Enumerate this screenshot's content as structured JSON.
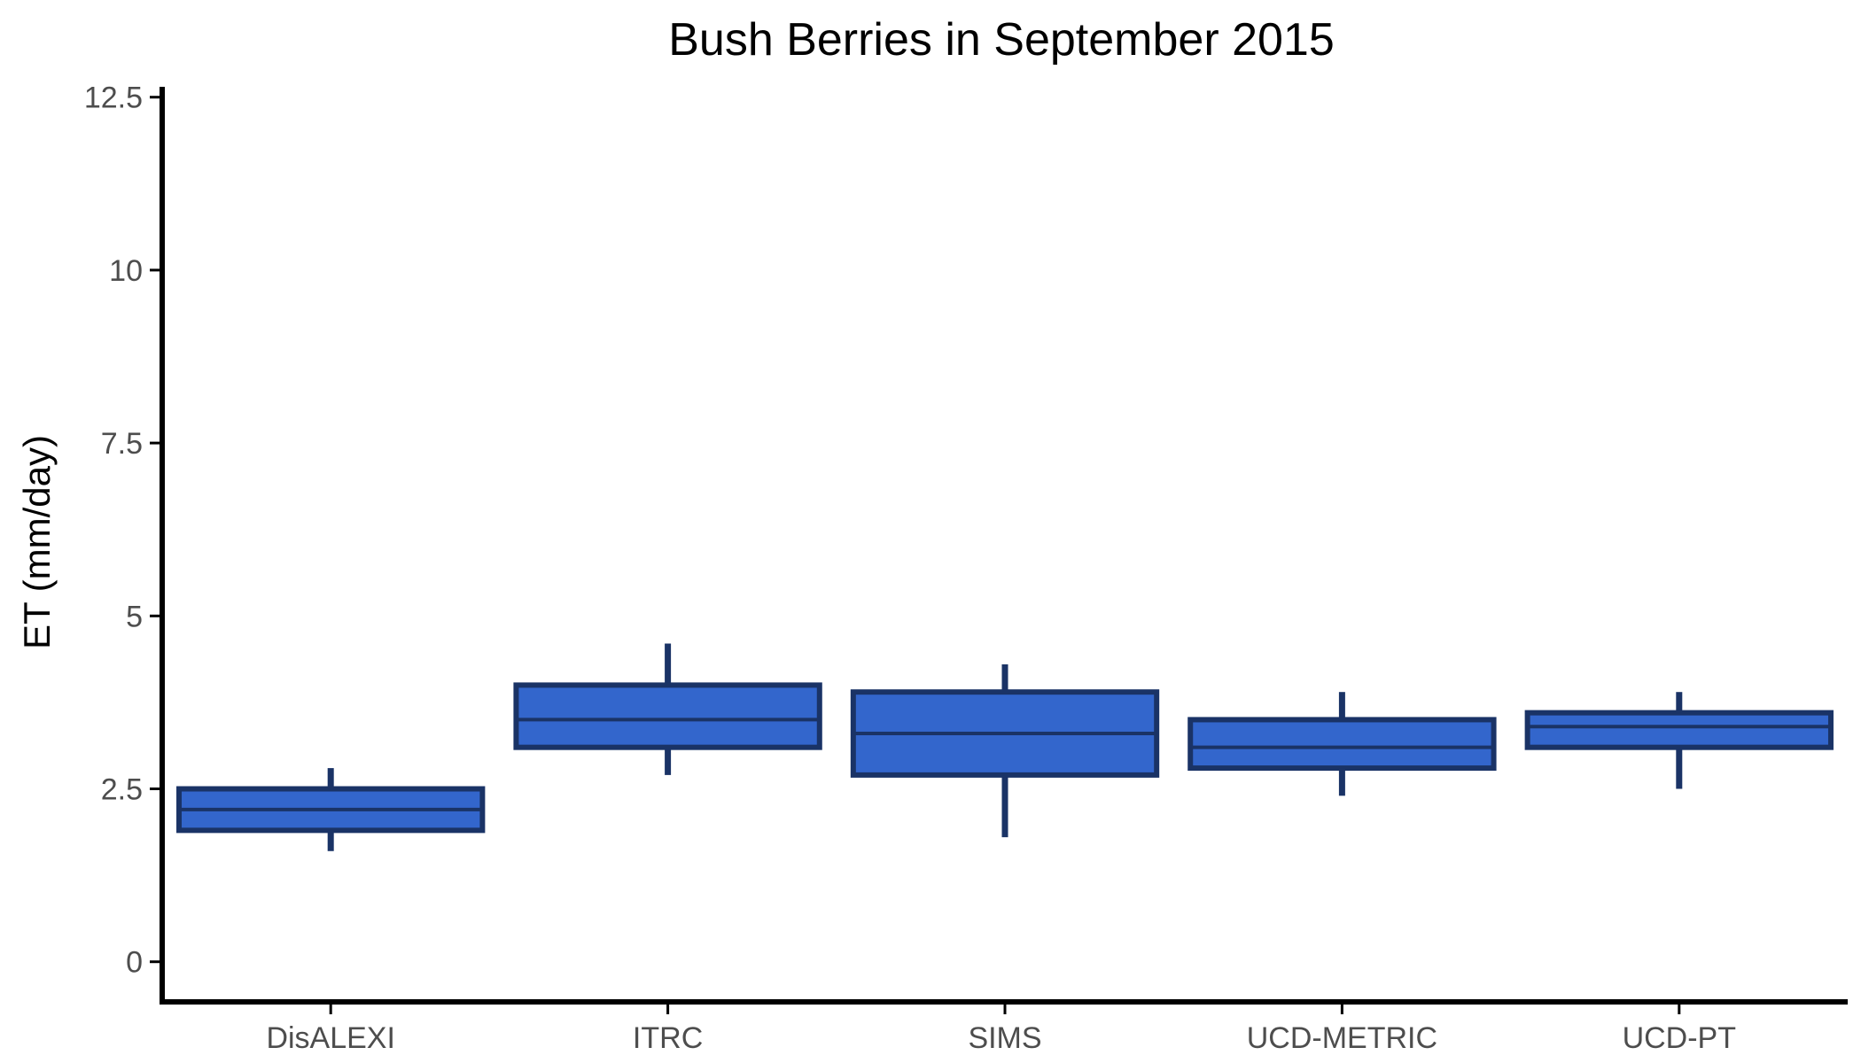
{
  "chart_data": {
    "type": "box",
    "title": "Bush Berries in September 2015",
    "xlabel": "",
    "ylabel": "ET (mm/day)",
    "ylim": [
      -0.58,
      12.65
    ],
    "yticks": [
      0,
      2.5,
      5,
      7.5,
      10,
      12.5
    ],
    "ytick_labels": [
      "0",
      "2.5",
      "5",
      "7.5",
      "10",
      "12.5"
    ],
    "categories": [
      "DisALEXI",
      "ITRC",
      "SIMS",
      "UCD-METRIC",
      "UCD-PT"
    ],
    "boxes": [
      {
        "whisker_low": 1.6,
        "q1": 1.9,
        "median": 2.2,
        "q3": 2.5,
        "whisker_high": 2.8
      },
      {
        "whisker_low": 2.7,
        "q1": 3.1,
        "median": 3.5,
        "q3": 4.0,
        "whisker_high": 4.6
      },
      {
        "whisker_low": 1.8,
        "q1": 2.7,
        "median": 3.3,
        "q3": 3.9,
        "whisker_high": 4.3
      },
      {
        "whisker_low": 2.4,
        "q1": 2.8,
        "median": 3.1,
        "q3": 3.5,
        "whisker_high": 3.9
      },
      {
        "whisker_low": 2.5,
        "q1": 3.1,
        "median": 3.4,
        "q3": 3.6,
        "whisker_high": 3.9
      }
    ],
    "grid": false,
    "legend": "none",
    "colors": {
      "box_fill": "#3366cc",
      "box_outline": "#1a3366",
      "axis": "#000000"
    }
  }
}
